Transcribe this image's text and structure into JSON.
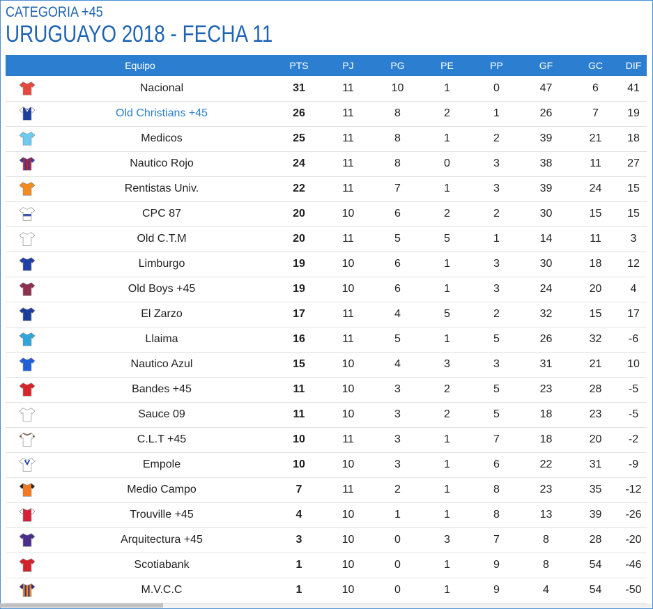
{
  "header": {
    "category": "CATEGORIA +45",
    "title": "URUGUAYO 2018 - FECHA 11"
  },
  "columns": {
    "team": "Equipo",
    "pts": "PTS",
    "pj": "PJ",
    "pg": "PG",
    "pe": "PE",
    "pp": "PP",
    "gf": "GF",
    "gc": "GC",
    "dif": "DIF"
  },
  "rows": [
    {
      "team": "Nacional",
      "pts": "31",
      "pj": "11",
      "pg": "10",
      "pe": "1",
      "pp": "0",
      "gf": "47",
      "gc": "6",
      "dif": "41",
      "shirt": {
        "kind": "plain",
        "body": "#e8473f",
        "sleeve": "#e8473f",
        "stripe": "#ffffff"
      },
      "highlight": false
    },
    {
      "team": "Old Christians +45",
      "pts": "26",
      "pj": "11",
      "pg": "8",
      "pe": "2",
      "pp": "1",
      "gf": "26",
      "gc": "7",
      "dif": "19",
      "shirt": {
        "kind": "vneck",
        "body": "#1d3f9e",
        "sleeve": "#ffffff",
        "stripe": "#1d3f9e"
      },
      "highlight": true
    },
    {
      "team": "Medicos",
      "pts": "25",
      "pj": "11",
      "pg": "8",
      "pe": "1",
      "pp": "2",
      "gf": "39",
      "gc": "21",
      "dif": "18",
      "shirt": {
        "kind": "plain",
        "body": "#6ccdf0",
        "sleeve": "#6ccdf0",
        "stripe": "#6ccdf0"
      },
      "highlight": false
    },
    {
      "team": "Nautico Rojo",
      "pts": "24",
      "pj": "11",
      "pg": "8",
      "pe": "0",
      "pp": "3",
      "gf": "38",
      "gc": "11",
      "dif": "27",
      "shirt": {
        "kind": "stripes",
        "body": "#c8202e",
        "sleeve": "#2b3f9e",
        "stripe": "#2b3f9e"
      },
      "highlight": false
    },
    {
      "team": "Rentistas Univ.",
      "pts": "22",
      "pj": "11",
      "pg": "7",
      "pe": "1",
      "pp": "3",
      "gf": "39",
      "gc": "24",
      "dif": "15",
      "shirt": {
        "kind": "plain",
        "body": "#f58a1f",
        "sleeve": "#f58a1f",
        "stripe": "#f58a1f"
      },
      "highlight": false
    },
    {
      "team": "CPC 87",
      "pts": "20",
      "pj": "10",
      "pg": "6",
      "pe": "2",
      "pp": "2",
      "gf": "30",
      "gc": "15",
      "dif": "15",
      "shirt": {
        "kind": "band",
        "body": "#ffffff",
        "sleeve": "#ffffff",
        "stripe": "#3c5aa8"
      },
      "highlight": false
    },
    {
      "team": "Old C.T.M",
      "pts": "20",
      "pj": "11",
      "pg": "5",
      "pe": "5",
      "pp": "1",
      "gf": "14",
      "gc": "11",
      "dif": "3",
      "shirt": {
        "kind": "plain",
        "body": "#ffffff",
        "sleeve": "#ffffff",
        "stripe": "#ffffff"
      },
      "highlight": false
    },
    {
      "team": "Limburgo",
      "pts": "19",
      "pj": "10",
      "pg": "6",
      "pe": "1",
      "pp": "3",
      "gf": "30",
      "gc": "18",
      "dif": "12",
      "shirt": {
        "kind": "plain",
        "body": "#1f3fa6",
        "sleeve": "#1f3fa6",
        "stripe": "#1f3fa6"
      },
      "highlight": false
    },
    {
      "team": "Old Boys +45",
      "pts": "19",
      "pj": "10",
      "pg": "6",
      "pe": "1",
      "pp": "3",
      "gf": "24",
      "gc": "20",
      "dif": "4",
      "shirt": {
        "kind": "plain",
        "body": "#8e2f4e",
        "sleeve": "#8e2f4e",
        "stripe": "#8e2f4e"
      },
      "highlight": false
    },
    {
      "team": "El Zarzo",
      "pts": "17",
      "pj": "11",
      "pg": "4",
      "pe": "5",
      "pp": "2",
      "gf": "32",
      "gc": "15",
      "dif": "17",
      "shirt": {
        "kind": "plain",
        "body": "#1c3d9c",
        "sleeve": "#1c3d9c",
        "stripe": "#1c3d9c"
      },
      "highlight": false
    },
    {
      "team": "Llaima",
      "pts": "16",
      "pj": "11",
      "pg": "5",
      "pe": "1",
      "pp": "5",
      "gf": "26",
      "gc": "32",
      "dif": "-6",
      "shirt": {
        "kind": "plain",
        "body": "#2fa6dc",
        "sleeve": "#2fa6dc",
        "stripe": "#2fa6dc"
      },
      "highlight": false
    },
    {
      "team": "Nautico Azul",
      "pts": "15",
      "pj": "10",
      "pg": "4",
      "pe": "3",
      "pp": "3",
      "gf": "31",
      "gc": "21",
      "dif": "10",
      "shirt": {
        "kind": "plain",
        "body": "#1f5fd8",
        "sleeve": "#1f5fd8",
        "stripe": "#1f5fd8"
      },
      "highlight": false
    },
    {
      "team": "Bandes +45",
      "pts": "11",
      "pj": "10",
      "pg": "3",
      "pe": "2",
      "pp": "5",
      "gf": "23",
      "gc": "28",
      "dif": "-5",
      "shirt": {
        "kind": "plain",
        "body": "#d8242b",
        "sleeve": "#d8242b",
        "stripe": "#d8242b"
      },
      "highlight": false
    },
    {
      "team": "Sauce 09",
      "pts": "11",
      "pj": "10",
      "pg": "3",
      "pe": "2",
      "pp": "5",
      "gf": "18",
      "gc": "23",
      "dif": "-5",
      "shirt": {
        "kind": "plain",
        "body": "#ffffff",
        "sleeve": "#ffffff",
        "stripe": "#ffffff"
      },
      "highlight": false
    },
    {
      "team": "C.L.T +45",
      "pts": "10",
      "pj": "11",
      "pg": "3",
      "pe": "1",
      "pp": "7",
      "gf": "18",
      "gc": "20",
      "dif": "-2",
      "shirt": {
        "kind": "trim",
        "body": "#ffffff",
        "sleeve": "#ffffff",
        "stripe": "#7a4a24"
      },
      "highlight": false
    },
    {
      "team": "Empole",
      "pts": "10",
      "pj": "10",
      "pg": "3",
      "pe": "1",
      "pp": "6",
      "gf": "22",
      "gc": "31",
      "dif": "-9",
      "shirt": {
        "kind": "chevron",
        "body": "#ffffff",
        "sleeve": "#ffffff",
        "stripe": "#1f3fa6"
      },
      "highlight": false
    },
    {
      "team": "Medio Campo",
      "pts": "7",
      "pj": "11",
      "pg": "2",
      "pe": "1",
      "pp": "8",
      "gf": "23",
      "gc": "35",
      "dif": "-12",
      "shirt": {
        "kind": "plain",
        "body": "#f27a1c",
        "sleeve": "#222222",
        "stripe": "#f27a1c"
      },
      "highlight": false
    },
    {
      "team": "Trouville +45",
      "pts": "4",
      "pj": "10",
      "pg": "1",
      "pe": "1",
      "pp": "8",
      "gf": "13",
      "gc": "39",
      "dif": "-26",
      "shirt": {
        "kind": "plain",
        "body": "#d82038",
        "sleeve": "#ffffff",
        "stripe": "#d82038"
      },
      "highlight": false
    },
    {
      "team": "Arquitectura +45",
      "pts": "3",
      "pj": "10",
      "pg": "0",
      "pe": "3",
      "pp": "7",
      "gf": "8",
      "gc": "28",
      "dif": "-20",
      "shirt": {
        "kind": "plain",
        "body": "#4a2f8c",
        "sleeve": "#4a2f8c",
        "stripe": "#4a2f8c"
      },
      "highlight": false
    },
    {
      "team": "Scotiabank",
      "pts": "1",
      "pj": "10",
      "pg": "0",
      "pe": "1",
      "pp": "9",
      "gf": "8",
      "gc": "54",
      "dif": "-46",
      "shirt": {
        "kind": "plain",
        "body": "#d4202a",
        "sleeve": "#d4202a",
        "stripe": "#d4202a"
      },
      "highlight": false
    },
    {
      "team": "M.V.C.C",
      "pts": "1",
      "pj": "10",
      "pg": "0",
      "pe": "1",
      "pp": "9",
      "gf": "4",
      "gc": "54",
      "dif": "-50",
      "shirt": {
        "kind": "stripes",
        "body": "#f08a1c",
        "sleeve": "#2c2c8c",
        "stripe": "#2c2c8c"
      },
      "highlight": false
    }
  ],
  "colors": {
    "accent": "#1f64b4",
    "header_bg": "#2c7fd0",
    "link": "#2a7fd2"
  }
}
